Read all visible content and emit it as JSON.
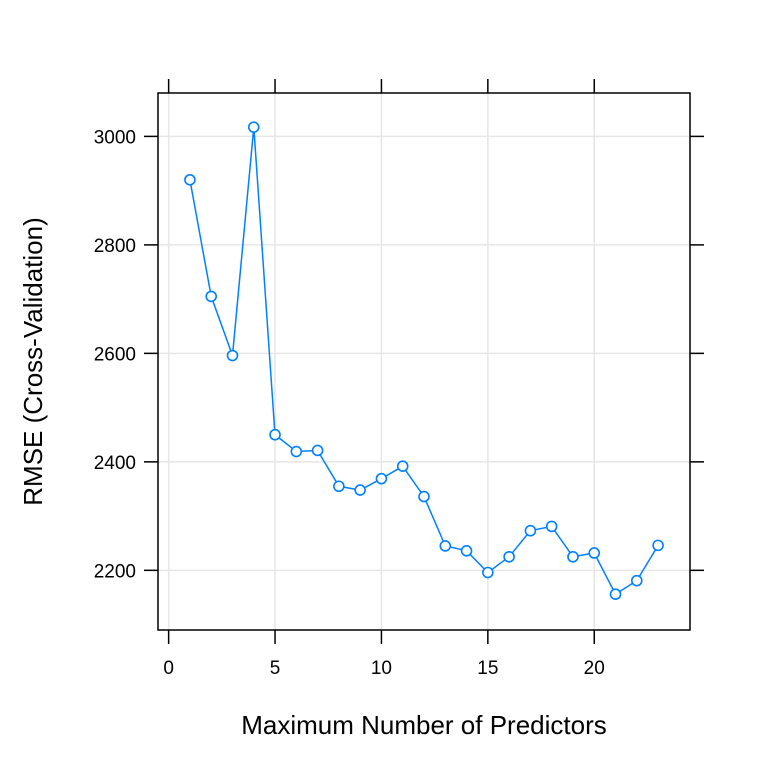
{
  "chart_data": {
    "type": "line",
    "xlabel": "Maximum Number of Predictors",
    "ylabel": "RMSE (Cross-Validation)",
    "xlim": [
      -0.5,
      24.5
    ],
    "ylim": [
      2090,
      3080
    ],
    "x_ticks": [
      0,
      5,
      10,
      15,
      20
    ],
    "y_ticks": [
      2200,
      2400,
      2600,
      2800,
      3000
    ],
    "grid": true,
    "series": [
      {
        "color": "#0080ff",
        "marker": "open-circle",
        "x": [
          1,
          2,
          3,
          4,
          5,
          6,
          7,
          8,
          9,
          10,
          11,
          12,
          13,
          14,
          15,
          16,
          17,
          18,
          19,
          20,
          21,
          22,
          23
        ],
        "y": [
          2920,
          2705,
          2596,
          3017,
          2450,
          2419,
          2421,
          2355,
          2348,
          2369,
          2392,
          2336,
          2245,
          2236,
          2196,
          2225,
          2273,
          2281,
          2225,
          2232,
          2156,
          2181,
          2246
        ]
      }
    ],
    "colors": {
      "grid": "#e6e6e6",
      "frame": "#000000",
      "line": "#0080ff"
    }
  }
}
